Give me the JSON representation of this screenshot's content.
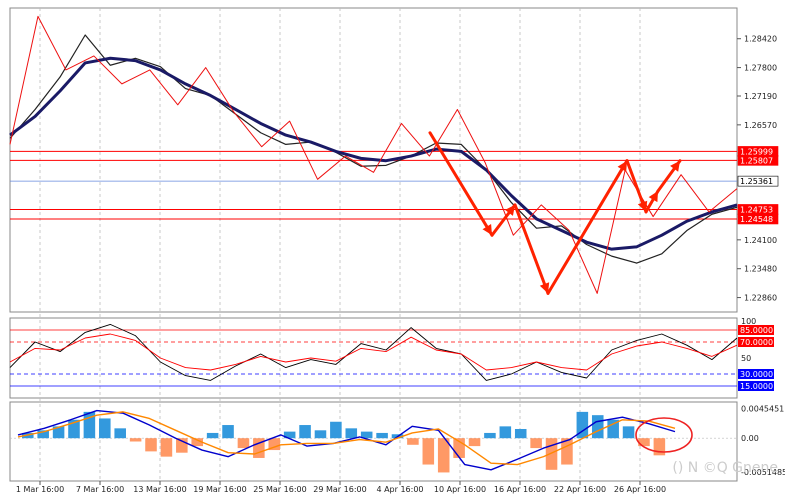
{
  "chart_data": [
    {
      "type": "line",
      "panel": "main",
      "title": "",
      "ylim": [
        1.2255,
        1.2908
      ],
      "y_ticks": [
        "1.28420",
        "1.27800",
        "1.27190",
        "1.26570",
        "1.24100",
        "1.23480",
        "1.22860"
      ],
      "price_levels": [
        {
          "value": 1.25999,
          "label": "1.25999",
          "color": "#ff0000"
        },
        {
          "value": 1.25807,
          "label": "1.25807",
          "color": "#ff0000"
        },
        {
          "value": 1.25361,
          "label": "1.25361",
          "color": "#000000"
        },
        {
          "value": 1.24753,
          "label": "1.24753",
          "color": "#ff0000"
        },
        {
          "value": 1.24548,
          "label": "1.24548",
          "color": "#ff0000"
        }
      ],
      "series": [
        {
          "values": [
            1.2628,
            1.269,
            1.276,
            1.285,
            1.2785,
            1.28,
            1.2782,
            1.2735,
            1.272,
            1.268,
            1.264,
            1.2615,
            1.262,
            1.2598,
            1.2568,
            1.257,
            1.259,
            1.2618,
            1.2615,
            1.256,
            1.249,
            1.2435,
            1.244,
            1.24,
            1.2375,
            1.236,
            1.238,
            1.243,
            1.2465,
            1.248
          ]
        },
        {
          "values": [
            1.2635,
            1.2675,
            1.273,
            1.279,
            1.28,
            1.2795,
            1.2775,
            1.2745,
            1.272,
            1.269,
            1.266,
            1.2635,
            1.262,
            1.26,
            1.2585,
            1.258,
            1.259,
            1.2605,
            1.26,
            1.256,
            1.2505,
            1.2455,
            1.243,
            1.2405,
            1.239,
            1.2395,
            1.242,
            1.245,
            1.247,
            1.2485
          ]
        }
      ],
      "zigzag": [
        1.2615,
        1.289,
        1.2775,
        1.2805,
        1.2745,
        1.2775,
        1.27,
        1.278,
        1.2685,
        1.261,
        1.2665,
        1.254,
        1.259,
        1.2555,
        1.266,
        1.259,
        1.269,
        1.2575,
        1.242,
        1.2485,
        1.243,
        1.2295,
        1.256,
        1.246,
        1.255,
        1.247,
        1.252
      ],
      "arrows": [
        {
          "x1": 430,
          "y1": 1.264,
          "x2": 492,
          "y2": 1.242
        },
        {
          "x1": 492,
          "y1": 1.242,
          "x2": 515,
          "y2": 1.2485
        },
        {
          "x1": 515,
          "y1": 1.2485,
          "x2": 548,
          "y2": 1.2295
        },
        {
          "x1": 548,
          "y1": 1.2295,
          "x2": 627,
          "y2": 1.258
        },
        {
          "x1": 627,
          "y1": 1.258,
          "x2": 646,
          "y2": 1.247
        },
        {
          "x1": 646,
          "y1": 1.247,
          "x2": 658,
          "y2": 1.2515
        },
        {
          "x1": 658,
          "y1": 1.2515,
          "x2": 680,
          "y2": 1.258
        }
      ]
    },
    {
      "type": "line",
      "panel": "oscillator",
      "ylim": [
        0,
        100
      ],
      "y_ticks": [
        "100",
        "50"
      ],
      "levels": [
        {
          "value": 85,
          "label": "85.0000",
          "color": "#ff0000"
        },
        {
          "value": 70,
          "label": "70.0000",
          "color": "#ff0000"
        },
        {
          "value": 30,
          "label": "30.0000",
          "color": "#0000ff"
        },
        {
          "value": 15,
          "label": "15.0000",
          "color": "#0000ff"
        }
      ],
      "series": [
        {
          "values": [
            38,
            70,
            58,
            82,
            92,
            78,
            45,
            28,
            22,
            40,
            55,
            38,
            48,
            42,
            68,
            60,
            88,
            62,
            55,
            22,
            30,
            45,
            32,
            25,
            60,
            72,
            80,
            66,
            48,
            75
          ]
        },
        {
          "values": [
            45,
            62,
            60,
            75,
            80,
            72,
            50,
            38,
            35,
            42,
            52,
            45,
            50,
            46,
            62,
            58,
            76,
            60,
            55,
            35,
            38,
            45,
            38,
            35,
            55,
            65,
            70,
            62,
            52,
            66
          ]
        }
      ]
    },
    {
      "type": "bar",
      "panel": "macd",
      "ylim": [
        -0.0065,
        0.0055
      ],
      "y_ticks": [
        "0.0045451",
        "0.00",
        "-0.0051485"
      ],
      "histogram": [
        0.0008,
        0.0012,
        0.0018,
        0.0028,
        0.004,
        0.003,
        0.0015,
        -0.0005,
        -0.002,
        -0.0028,
        -0.0022,
        -0.0012,
        0.0008,
        0.002,
        -0.0015,
        -0.003,
        -0.0018,
        0.001,
        0.002,
        0.0012,
        0.0025,
        0.0015,
        0.001,
        0.0008,
        0.0006,
        -0.001,
        -0.004,
        -0.0052,
        -0.003,
        -0.0012,
        0.0008,
        0.0018,
        0.0014,
        -0.0015,
        -0.0048,
        -0.004,
        0.004,
        0.0035,
        0.0028,
        0.0018,
        -0.0012,
        -0.0026
      ],
      "series": [
        {
          "values": [
            0.0005,
            0.0015,
            0.0028,
            0.0042,
            0.0038,
            0.002,
            0.0,
            -0.0018,
            -0.0028,
            -0.001,
            0.0005,
            -0.0012,
            -0.0008,
            0.0002,
            -0.001,
            0.0018,
            0.0012,
            -0.004,
            -0.0048,
            -0.0032,
            -0.0015,
            -0.0002,
            0.0025,
            0.0032,
            0.0022,
            0.001
          ]
        },
        {
          "values": [
            0.0002,
            0.001,
            0.0022,
            0.0035,
            0.004,
            0.003,
            0.0012,
            -0.0006,
            -0.0022,
            -0.0024,
            -0.001,
            -0.0008,
            -0.0008,
            -0.0002,
            -0.0006,
            0.0008,
            0.0014,
            -0.001,
            -0.0038,
            -0.004,
            -0.0028,
            -0.001,
            0.001,
            0.0028,
            0.0026,
            0.0015
          ]
        }
      ]
    }
  ],
  "x_axis": {
    "labels": [
      "1 Mar 16:00",
      "7 Mar 16:00",
      "13 Mar 16:00",
      "19 Mar 16:00",
      "25 Mar 16:00",
      "29 Mar 16:00",
      "4 Apr 16:00",
      "10 Apr 16:00",
      "16 Apr 16:00",
      "22 Apr 16:00",
      "26 Apr 16:00"
    ]
  },
  "colors": {
    "levels_red": "#ff0000",
    "current_price_line": "#6688dd",
    "ma_slow": "#1a1a66",
    "ma_fast": "#222222",
    "arrows": "#ff2200",
    "macd_pos": "#3399dd",
    "macd_neg": "#ff9966",
    "macd_line": "#0000cc",
    "signal_line": "#ff8800",
    "osc_1": "#000000",
    "osc_2": "#ff0000",
    "osc_3": "#0000ff"
  },
  "watermark": {
    "text": "() N ©Q Gnene"
  }
}
